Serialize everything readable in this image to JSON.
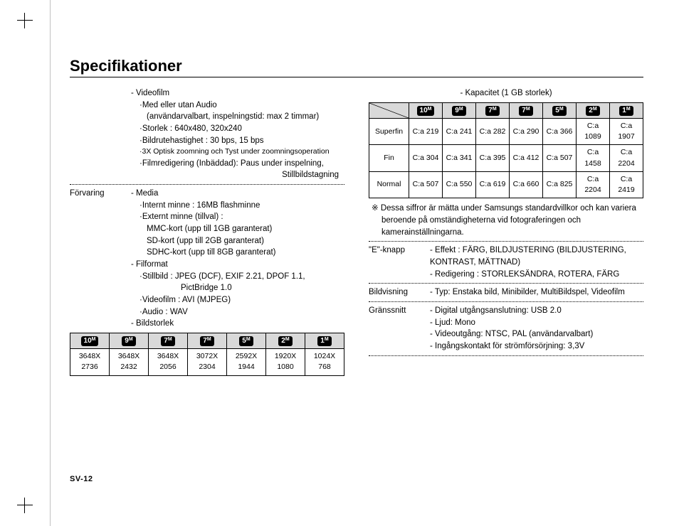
{
  "page": {
    "title": "Specifikationer",
    "footer": "SV-12"
  },
  "video": {
    "heading": "- Videofilm",
    "l1": "·Med eller utan Audio",
    "l1b": "(användarvalbart, inspelningstid: max 2 timmar)",
    "l2": "·Storlek : 640x480, 320x240",
    "l3": "·Bildrutehastighet : 30 bps, 15 bps",
    "l4": "·3X Optisk zoomning och Tyst under zoomningsoperation",
    "l5": "·Filmredigering (Inbäddad): Paus under inspelning,",
    "l5b": "Stillbildstagning"
  },
  "storage": {
    "label": "Förvaring",
    "mediaHeading": "- Media",
    "m1": "·Internt minne : 16MB flashminne",
    "m2": "·Externt minne (tillval) :",
    "m2a": "MMC-kort (upp till 1GB garanterat)",
    "m2b": "SD-kort (upp till 2GB garanterat)",
    "m2c": "SDHC-kort (upp till 8GB garanterat)",
    "fileHeading": "- Filformat",
    "f1": "·Stillbild : JPEG (DCF), EXIF 2.21, DPOF 1.1,",
    "f1b": "PictBridge 1.0",
    "f2": "·Videofilm : AVI (MJPEG)",
    "f3": "·Audio : WAV",
    "sizeHeading": "- Bildstorlek"
  },
  "sizeBadges": [
    "10",
    "9",
    "7",
    "7",
    "5",
    "2",
    "1"
  ],
  "sizeTable": {
    "rows": [
      [
        "3648X 2736",
        "3648X 2432",
        "3648X 2056",
        "3072X 2304",
        "2592X 1944",
        "1920X 1080",
        "1024X 768"
      ]
    ]
  },
  "capacity": {
    "heading": "- Kapacitet (1 GB storlek)",
    "quality": [
      "Superfin",
      "Fin",
      "Normal"
    ],
    "data": [
      [
        "C:a 219",
        "C:a 241",
        "C:a 282",
        "C:a 290",
        "C:a 366",
        "C:a 1089",
        "C:a 1907"
      ],
      [
        "C:a 304",
        "C:a 341",
        "C:a 395",
        "C:a 412",
        "C:a 507",
        "C:a 1458",
        "C:a 2204"
      ],
      [
        "C:a 507",
        "C:a 550",
        "C:a 619",
        "C:a 660",
        "C:a 825",
        "C:a 2204",
        "C:a 2419"
      ]
    ],
    "note": "※ Dessa siffror är mätta under Samsungs standardvillkor och kan variera beroende på omständigheterna vid fotograferingen och kamerainställningarna."
  },
  "ebutton": {
    "label": "\"E\"-knapp",
    "l1": "- Effekt : FÄRG, BILDJUSTERING (BILDJUSTERING, KONTRAST, MÄTTNAD)",
    "l2": "- Redigering :  STORLEKSÄNDRA, ROTERA, FÄRG"
  },
  "display": {
    "label": "Bildvisning",
    "l1": "- Typ: Enstaka bild, Minibilder, MultiBildspel, Videofilm"
  },
  "interface": {
    "label": "Gränssnitt",
    "l1": "- Digital utgångsanslutning: USB 2.0",
    "l2": "- Ljud: Mono",
    "l3": "- Videoutgång: NTSC, PAL (användarvalbart)",
    "l4": "- Ingångskontakt för strömförsörjning: 3,3V"
  },
  "colors": {
    "headerBg": "#d9d9d9",
    "text": "#000000"
  }
}
